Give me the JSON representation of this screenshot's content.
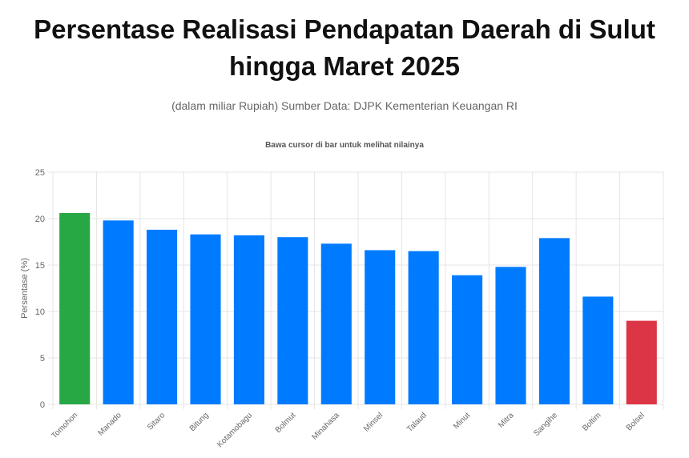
{
  "header": {
    "title": "Persentase Realisasi Pendapatan Daerah di Sulut hingga Maret 2025",
    "subtitle": "(dalam miliar Rupiah) Sumber Data: DJPK Kementerian Keuangan RI",
    "hint": "Bawa cursor di bar untuk melihat nilainya"
  },
  "colors": {
    "highest": "#28a745",
    "default": "#007bff",
    "lowest": "#dc3545",
    "grid": "#e5e5e5",
    "axis_text": "#666666"
  },
  "chart_data": {
    "type": "bar",
    "ylabel": "Persentase (%)",
    "xlabel": "",
    "ylim": [
      0,
      25
    ],
    "yticks": [
      0,
      5,
      10,
      15,
      20,
      25
    ],
    "grid": true,
    "legend": "none",
    "categories": [
      "Tomohon",
      "Manado",
      "Sitaro",
      "Bitung",
      "Kotamobagu",
      "Bolmut",
      "Minahasa",
      "Minsel",
      "Talaud",
      "Minut",
      "Mitra",
      "Sangihe",
      "Boltim",
      "Bolsel"
    ],
    "values": [
      20.6,
      19.8,
      18.8,
      18.3,
      18.2,
      18.0,
      17.3,
      16.6,
      16.5,
      13.9,
      14.8,
      17.9,
      11.6,
      9.0
    ],
    "bar_colors": [
      "#28a745",
      "#007bff",
      "#007bff",
      "#007bff",
      "#007bff",
      "#007bff",
      "#007bff",
      "#007bff",
      "#007bff",
      "#007bff",
      "#007bff",
      "#007bff",
      "#007bff",
      "#dc3545"
    ]
  }
}
